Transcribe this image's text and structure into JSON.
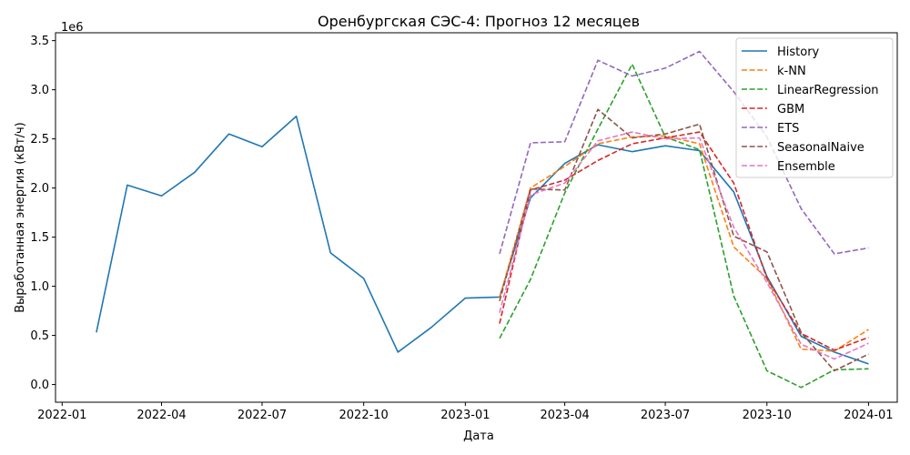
{
  "chart_data": {
    "type": "line",
    "title": "Оренбургская СЭС-4: Прогноз 12 месяцев",
    "xlabel": "Дата",
    "ylabel": "Выработанная энергия (кВт/ч)",
    "y_multiplier_label": "1e6",
    "ylim": [
      -0.18,
      3.58
    ],
    "y_unit_scale": 1000000,
    "xlim": [
      "2021-12-26",
      "2024-01-27"
    ],
    "x_ticks": [
      "2022-01",
      "2022-04",
      "2022-07",
      "2022-10",
      "2023-01",
      "2023-04",
      "2023-07",
      "2023-10",
      "2024-01"
    ],
    "y_ticks": [
      "0.0",
      "0.5",
      "1.0",
      "1.5",
      "2.0",
      "2.5",
      "3.0",
      "3.5"
    ],
    "grid": false,
    "legend_position": "top-right",
    "series": [
      {
        "name": "History",
        "color": "#1f77b4",
        "dash": "solid",
        "x": [
          "2022-02-01",
          "2022-03-01",
          "2022-04-01",
          "2022-05-01",
          "2022-06-01",
          "2022-07-01",
          "2022-08-01",
          "2022-09-01",
          "2022-10-01",
          "2022-11-01",
          "2022-12-01",
          "2023-01-01",
          "2023-02-01",
          "2023-03-01",
          "2023-04-01",
          "2023-05-01",
          "2023-06-01",
          "2023-07-01",
          "2023-08-01",
          "2023-09-01",
          "2023-10-01",
          "2023-11-01",
          "2023-12-01",
          "2024-01-01"
        ],
        "y": [
          0.53,
          2.03,
          1.92,
          2.16,
          2.55,
          2.42,
          2.73,
          1.34,
          1.08,
          0.33,
          0.58,
          0.88,
          0.89,
          1.9,
          2.25,
          2.44,
          2.37,
          2.43,
          2.38,
          1.96,
          1.1,
          0.49,
          0.33,
          0.21
        ]
      },
      {
        "name": "k-NN",
        "color": "#ff7f0e",
        "dash": "dashed",
        "x": [
          "2023-02-01",
          "2023-03-01",
          "2023-04-01",
          "2023-05-01",
          "2023-06-01",
          "2023-07-01",
          "2023-08-01",
          "2023-09-01",
          "2023-10-01",
          "2023-11-01",
          "2023-12-01",
          "2024-01-01"
        ],
        "y": [
          0.88,
          2.0,
          2.22,
          2.45,
          2.52,
          2.53,
          2.45,
          1.4,
          1.08,
          0.36,
          0.34,
          0.56
        ]
      },
      {
        "name": "LinearRegression",
        "color": "#2ca02c",
        "dash": "dashed",
        "x": [
          "2023-02-01",
          "2023-03-01",
          "2023-04-01",
          "2023-05-01",
          "2023-06-01",
          "2023-07-01",
          "2023-08-01",
          "2023-09-01",
          "2023-10-01",
          "2023-11-01",
          "2023-12-01",
          "2024-01-01"
        ],
        "y": [
          0.47,
          1.07,
          1.95,
          2.6,
          3.26,
          2.52,
          2.39,
          0.9,
          0.14,
          -0.03,
          0.15,
          0.16
        ]
      },
      {
        "name": "GBM",
        "color": "#d62728",
        "dash": "dashed",
        "x": [
          "2023-02-01",
          "2023-03-01",
          "2023-04-01",
          "2023-05-01",
          "2023-06-01",
          "2023-07-01",
          "2023-08-01",
          "2023-09-01",
          "2023-10-01",
          "2023-11-01",
          "2023-12-01",
          "2024-01-01"
        ],
        "y": [
          0.62,
          1.98,
          2.08,
          2.28,
          2.45,
          2.51,
          2.57,
          2.05,
          1.08,
          0.52,
          0.35,
          0.48
        ]
      },
      {
        "name": "ETS",
        "color": "#9467bd",
        "dash": "dashed",
        "x": [
          "2023-02-01",
          "2023-03-01",
          "2023-04-01",
          "2023-05-01",
          "2023-06-01",
          "2023-07-01",
          "2023-08-01",
          "2023-09-01",
          "2023-10-01",
          "2023-11-01",
          "2023-12-01",
          "2024-01-01"
        ],
        "y": [
          1.33,
          2.46,
          2.47,
          3.3,
          3.14,
          3.22,
          3.39,
          2.98,
          2.52,
          1.79,
          1.33,
          1.39
        ]
      },
      {
        "name": "SeasonalNaive",
        "color": "#8c564b",
        "dash": "dashed",
        "x": [
          "2023-02-01",
          "2023-03-01",
          "2023-04-01",
          "2023-05-01",
          "2023-06-01",
          "2023-07-01",
          "2023-08-01",
          "2023-09-01",
          "2023-10-01",
          "2023-11-01",
          "2023-12-01",
          "2024-01-01"
        ],
        "y": [
          0.85,
          1.99,
          1.98,
          2.8,
          2.51,
          2.55,
          2.65,
          1.51,
          1.35,
          0.53,
          0.14,
          0.31
        ]
      },
      {
        "name": "Ensemble",
        "color": "#e377c2",
        "dash": "dashed",
        "x": [
          "2023-02-01",
          "2023-03-01",
          "2023-04-01",
          "2023-05-01",
          "2023-06-01",
          "2023-07-01",
          "2023-08-01",
          "2023-09-01",
          "2023-10-01",
          "2023-11-01",
          "2023-12-01",
          "2024-01-01"
        ],
        "y": [
          0.73,
          1.93,
          2.05,
          2.48,
          2.57,
          2.5,
          2.51,
          1.6,
          1.04,
          0.41,
          0.26,
          0.42
        ]
      }
    ]
  }
}
